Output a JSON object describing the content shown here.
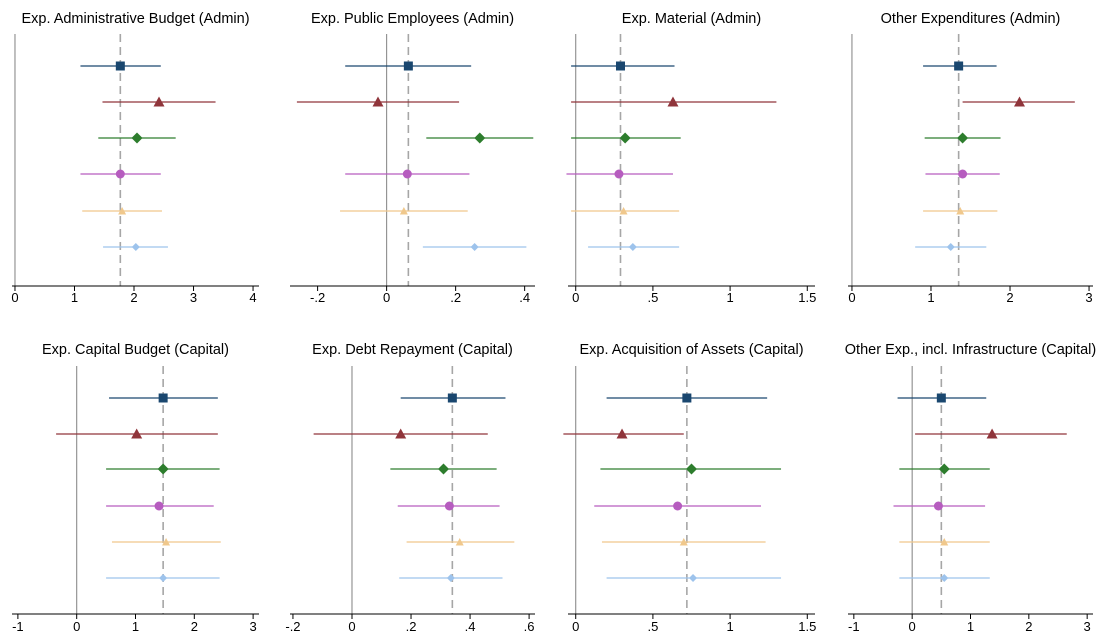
{
  "colors": {
    "zero_line": "#8c8c8c",
    "mean_line": "#a6a6a6",
    "axis": "#000000",
    "series": [
      "#1a476f",
      "#90353b",
      "#2d7d2d",
      "#b65cbf",
      "#f0c88c",
      "#9dc3ec"
    ],
    "markers": [
      "square",
      "triangle",
      "diamond",
      "circle",
      "triangle-small",
      "diamond-small"
    ]
  },
  "chart_data": [
    {
      "type": "scatter",
      "title": "Exp. Administrative Budget (Admin)",
      "xlim": [
        -0.05,
        4.1
      ],
      "xticks": [
        0,
        1,
        2,
        3,
        4
      ],
      "xtick_labels": [
        "0",
        "1",
        "2",
        "3",
        "4"
      ],
      "reference": 1.77,
      "points": [
        {
          "est": 1.77,
          "lo": 1.1,
          "hi": 2.45
        },
        {
          "est": 2.42,
          "lo": 1.47,
          "hi": 3.37
        },
        {
          "est": 2.05,
          "lo": 1.4,
          "hi": 2.7
        },
        {
          "est": 1.77,
          "lo": 1.1,
          "hi": 2.45
        },
        {
          "est": 1.8,
          "lo": 1.13,
          "hi": 2.47
        },
        {
          "est": 2.03,
          "lo": 1.48,
          "hi": 2.57
        }
      ]
    },
    {
      "type": "scatter",
      "title": "Exp. Public Employees (Admin)",
      "xlim": [
        -0.28,
        0.43
      ],
      "xticks": [
        -0.2,
        0,
        0.2,
        0.4
      ],
      "xtick_labels": [
        "-.2",
        "0",
        ".2",
        ".4"
      ],
      "reference": 0.063,
      "points": [
        {
          "est": 0.063,
          "lo": -0.12,
          "hi": 0.245
        },
        {
          "est": -0.025,
          "lo": -0.26,
          "hi": 0.21
        },
        {
          "est": 0.27,
          "lo": 0.115,
          "hi": 0.425
        },
        {
          "est": 0.06,
          "lo": -0.12,
          "hi": 0.24
        },
        {
          "est": 0.05,
          "lo": -0.135,
          "hi": 0.235
        },
        {
          "est": 0.255,
          "lo": 0.105,
          "hi": 0.405
        }
      ]
    },
    {
      "type": "scatter",
      "title": "Exp.  Material (Admin)",
      "xlim": [
        -0.05,
        1.55
      ],
      "xticks": [
        0,
        0.5,
        1,
        1.5
      ],
      "xtick_labels": [
        "0",
        ".5",
        "1",
        "1.5"
      ],
      "reference": 0.29,
      "points": [
        {
          "est": 0.29,
          "lo": -0.03,
          "hi": 0.64
        },
        {
          "est": 0.63,
          "lo": -0.03,
          "hi": 1.3
        },
        {
          "est": 0.32,
          "lo": -0.03,
          "hi": 0.68
        },
        {
          "est": 0.28,
          "lo": -0.06,
          "hi": 0.63
        },
        {
          "est": 0.31,
          "lo": -0.03,
          "hi": 0.67
        },
        {
          "est": 0.37,
          "lo": 0.08,
          "hi": 0.67
        }
      ]
    },
    {
      "type": "scatter",
      "title": "Other Expenditures (Admin)",
      "xlim": [
        -0.05,
        3.05
      ],
      "xticks": [
        0,
        1,
        2,
        3
      ],
      "xtick_labels": [
        "0",
        "1",
        "2",
        "3"
      ],
      "reference": 1.35,
      "points": [
        {
          "est": 1.35,
          "lo": 0.9,
          "hi": 1.83
        },
        {
          "est": 2.12,
          "lo": 1.4,
          "hi": 2.82
        },
        {
          "est": 1.4,
          "lo": 0.92,
          "hi": 1.88
        },
        {
          "est": 1.4,
          "lo": 0.93,
          "hi": 1.87
        },
        {
          "est": 1.37,
          "lo": 0.9,
          "hi": 1.84
        },
        {
          "est": 1.25,
          "lo": 0.8,
          "hi": 1.7
        }
      ]
    },
    {
      "type": "scatter",
      "title": "Exp. Capital Budget (Capital)",
      "xlim": [
        -1.1,
        3.1
      ],
      "xticks": [
        -1,
        0,
        1,
        2,
        3
      ],
      "xtick_labels": [
        "-1",
        "0",
        "1",
        "2",
        "3"
      ],
      "reference": 1.47,
      "points": [
        {
          "est": 1.47,
          "lo": 0.55,
          "hi": 2.4
        },
        {
          "est": 1.02,
          "lo": -0.35,
          "hi": 2.4
        },
        {
          "est": 1.47,
          "lo": 0.5,
          "hi": 2.43
        },
        {
          "est": 1.4,
          "lo": 0.5,
          "hi": 2.33
        },
        {
          "est": 1.52,
          "lo": 0.6,
          "hi": 2.45
        },
        {
          "est": 1.47,
          "lo": 0.5,
          "hi": 2.43
        }
      ]
    },
    {
      "type": "scatter",
      "title": "Exp. Debt Repayment (Capital)",
      "xlim": [
        -0.21,
        0.62
      ],
      "xticks": [
        -0.2,
        0,
        0.2,
        0.4,
        0.6
      ],
      "xtick_labels": [
        "-.2",
        "0",
        ".2",
        ".4",
        ".6"
      ],
      "reference": 0.34,
      "points": [
        {
          "est": 0.34,
          "lo": 0.165,
          "hi": 0.52
        },
        {
          "est": 0.165,
          "lo": -0.13,
          "hi": 0.46
        },
        {
          "est": 0.31,
          "lo": 0.13,
          "hi": 0.49
        },
        {
          "est": 0.33,
          "lo": 0.155,
          "hi": 0.5
        },
        {
          "est": 0.365,
          "lo": 0.185,
          "hi": 0.55
        },
        {
          "est": 0.335,
          "lo": 0.16,
          "hi": 0.51
        }
      ]
    },
    {
      "type": "scatter",
      "title": "Exp. Acquisition of Assets (Capital)",
      "xlim": [
        -0.05,
        1.55
      ],
      "xticks": [
        0,
        0.5,
        1,
        1.5
      ],
      "xtick_labels": [
        "0",
        ".5",
        "1",
        "1.5"
      ],
      "reference": 0.72,
      "points": [
        {
          "est": 0.72,
          "lo": 0.2,
          "hi": 1.24
        },
        {
          "est": 0.3,
          "lo": -0.08,
          "hi": 0.7
        },
        {
          "est": 0.75,
          "lo": 0.16,
          "hi": 1.33
        },
        {
          "est": 0.66,
          "lo": 0.12,
          "hi": 1.2
        },
        {
          "est": 0.7,
          "lo": 0.17,
          "hi": 1.23
        },
        {
          "est": 0.76,
          "lo": 0.2,
          "hi": 1.33
        }
      ]
    },
    {
      "type": "scatter",
      "title": "Other Exp., incl. Infrastructure (Capital)",
      "xlim": [
        -1.1,
        3.1
      ],
      "xticks": [
        -1,
        0,
        1,
        2,
        3
      ],
      "xtick_labels": [
        "-1",
        "0",
        "1",
        "2",
        "3"
      ],
      "reference": 0.5,
      "points": [
        {
          "est": 0.5,
          "lo": -0.25,
          "hi": 1.27
        },
        {
          "est": 1.37,
          "lo": 0.05,
          "hi": 2.65
        },
        {
          "est": 0.55,
          "lo": -0.22,
          "hi": 1.33
        },
        {
          "est": 0.45,
          "lo": -0.32,
          "hi": 1.25
        },
        {
          "est": 0.55,
          "lo": -0.22,
          "hi": 1.33
        },
        {
          "est": 0.55,
          "lo": -0.22,
          "hi": 1.33
        }
      ]
    }
  ]
}
